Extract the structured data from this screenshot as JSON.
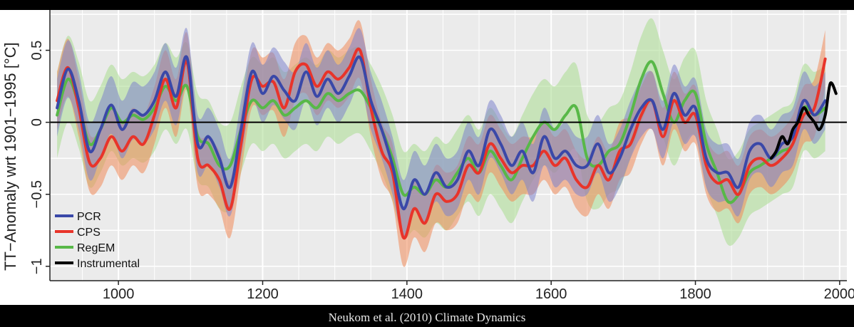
{
  "caption": "Neukom et al. (2010) Climate Dynamics",
  "chart_data": {
    "type": "line",
    "title": "",
    "xlabel": "",
    "ylabel": "TT−Anomaly wrt 1901−1995 [°C]",
    "xlim": [
      905,
      2010
    ],
    "ylim": [
      -1.1,
      0.78
    ],
    "x_ticks": [
      1000,
      1200,
      1400,
      1600,
      1800,
      2000
    ],
    "y_ticks": [
      -1,
      -0.5,
      0,
      0.5
    ],
    "y_tick_labels": [
      "−1",
      "−0.5",
      "0",
      "0.5"
    ],
    "grid": true,
    "legend_position": "bottom-left",
    "legend": [
      "PCR",
      "CPS",
      "RegEM",
      "Instrumental"
    ],
    "colors": {
      "PCR": "#3a48a8",
      "CPS": "#e8342a",
      "RegEM": "#58b848",
      "Instrumental": "#000000"
    },
    "band_colors": {
      "PCR": "#7d84cc",
      "CPS": "#f08a5a",
      "RegEM": "#a9dd90"
    },
    "band_halfwidth": {
      "PCR": 0.2,
      "CPS": 0.2,
      "RegEM": 0.3
    },
    "series": [
      {
        "name": "PCR",
        "x": [
          915,
          930,
          945,
          960,
          975,
          990,
          1005,
          1020,
          1035,
          1050,
          1065,
          1080,
          1095,
          1110,
          1125,
          1140,
          1155,
          1170,
          1185,
          1200,
          1215,
          1230,
          1245,
          1260,
          1275,
          1290,
          1305,
          1320,
          1335,
          1350,
          1365,
          1380,
          1395,
          1410,
          1425,
          1440,
          1455,
          1470,
          1485,
          1500,
          1515,
          1530,
          1545,
          1560,
          1575,
          1590,
          1605,
          1620,
          1635,
          1650,
          1665,
          1680,
          1695,
          1710,
          1725,
          1740,
          1755,
          1770,
          1785,
          1800,
          1815,
          1830,
          1845,
          1860,
          1875,
          1890,
          1905,
          1920,
          1935,
          1950,
          1965,
          1980
        ],
        "y": [
          0.1,
          0.37,
          0.15,
          -0.2,
          -0.05,
          0.12,
          -0.05,
          0.08,
          0.05,
          0.15,
          0.35,
          0.18,
          0.45,
          -0.15,
          -0.1,
          -0.25,
          -0.45,
          -0.05,
          0.35,
          0.2,
          0.32,
          0.22,
          0.15,
          0.35,
          0.18,
          0.3,
          0.2,
          0.32,
          0.45,
          0.15,
          -0.05,
          -0.3,
          -0.6,
          -0.4,
          -0.5,
          -0.35,
          -0.45,
          -0.4,
          -0.2,
          -0.3,
          -0.05,
          -0.15,
          -0.3,
          -0.2,
          -0.35,
          -0.1,
          -0.25,
          -0.2,
          -0.3,
          -0.3,
          -0.15,
          -0.35,
          -0.25,
          -0.05,
          0.1,
          0.15,
          -0.05,
          0.2,
          0.05,
          0.1,
          -0.25,
          -0.35,
          -0.35,
          -0.45,
          -0.2,
          -0.15,
          -0.25,
          -0.15,
          -0.1,
          0.15,
          0.05,
          0.15
        ]
      },
      {
        "name": "CPS",
        "x": [
          915,
          930,
          945,
          960,
          975,
          990,
          1005,
          1020,
          1035,
          1050,
          1065,
          1080,
          1095,
          1110,
          1125,
          1140,
          1155,
          1170,
          1185,
          1200,
          1215,
          1230,
          1245,
          1260,
          1275,
          1290,
          1305,
          1320,
          1335,
          1350,
          1365,
          1380,
          1395,
          1410,
          1425,
          1440,
          1455,
          1470,
          1485,
          1500,
          1515,
          1530,
          1545,
          1560,
          1575,
          1590,
          1605,
          1620,
          1635,
          1650,
          1665,
          1680,
          1695,
          1710,
          1725,
          1740,
          1755,
          1770,
          1785,
          1800,
          1815,
          1830,
          1845,
          1860,
          1875,
          1890,
          1905,
          1920,
          1935,
          1950,
          1965,
          1980
        ],
        "y": [
          0.15,
          0.38,
          0.1,
          -0.28,
          -0.25,
          -0.1,
          -0.2,
          -0.1,
          -0.15,
          0.05,
          0.3,
          0.1,
          0.42,
          -0.25,
          -0.3,
          -0.4,
          -0.6,
          -0.15,
          0.3,
          0.25,
          0.28,
          0.1,
          0.35,
          0.4,
          0.25,
          0.35,
          0.3,
          0.38,
          0.5,
          0.1,
          -0.2,
          -0.35,
          -0.8,
          -0.6,
          -0.7,
          -0.5,
          -0.55,
          -0.5,
          -0.3,
          -0.35,
          -0.15,
          -0.25,
          -0.35,
          -0.3,
          -0.3,
          -0.2,
          -0.3,
          -0.25,
          -0.4,
          -0.45,
          -0.3,
          -0.4,
          -0.2,
          -0.15,
          0.05,
          0.15,
          -0.1,
          0.15,
          0.0,
          0.05,
          -0.3,
          -0.42,
          -0.4,
          -0.5,
          -0.3,
          -0.25,
          -0.3,
          -0.25,
          -0.15,
          0.05,
          0.1,
          0.44
        ]
      },
      {
        "name": "RegEM",
        "x": [
          915,
          930,
          945,
          960,
          975,
          990,
          1005,
          1020,
          1035,
          1050,
          1065,
          1080,
          1095,
          1110,
          1125,
          1140,
          1155,
          1170,
          1185,
          1200,
          1215,
          1230,
          1245,
          1260,
          1275,
          1290,
          1305,
          1320,
          1335,
          1350,
          1365,
          1380,
          1395,
          1410,
          1425,
          1440,
          1455,
          1470,
          1485,
          1500,
          1515,
          1530,
          1545,
          1560,
          1575,
          1590,
          1605,
          1620,
          1635,
          1650,
          1665,
          1680,
          1695,
          1710,
          1725,
          1740,
          1755,
          1770,
          1785,
          1800,
          1815,
          1830,
          1845,
          1860,
          1875,
          1890,
          1905,
          1920,
          1935,
          1950,
          1965,
          1980
        ],
        "y": [
          0.05,
          0.3,
          0.12,
          -0.15,
          -0.05,
          0.1,
          0.0,
          0.05,
          0.02,
          0.1,
          0.25,
          0.15,
          0.25,
          -0.1,
          -0.15,
          -0.3,
          -0.3,
          -0.05,
          0.15,
          0.1,
          0.15,
          0.05,
          0.1,
          0.15,
          0.1,
          0.2,
          0.15,
          0.2,
          0.22,
          0.1,
          -0.05,
          -0.25,
          -0.5,
          -0.45,
          -0.5,
          -0.4,
          -0.45,
          -0.35,
          -0.25,
          -0.35,
          -0.2,
          -0.3,
          -0.4,
          -0.25,
          -0.1,
          0.0,
          -0.05,
          0.05,
          0.1,
          -0.25,
          -0.3,
          -0.2,
          -0.15,
          0.05,
          0.3,
          0.42,
          0.2,
          0.0,
          0.15,
          0.2,
          -0.15,
          -0.35,
          -0.55,
          -0.5,
          -0.35,
          -0.3,
          -0.25,
          -0.2,
          -0.15,
          0.1,
          0.05,
          0.1
        ]
      },
      {
        "name": "Instrumental",
        "x": [
          1905,
          1912,
          1920,
          1928,
          1935,
          1942,
          1950,
          1957,
          1965,
          1972,
          1980,
          1987,
          1995
        ],
        "y": [
          -0.25,
          -0.2,
          -0.1,
          -0.15,
          -0.05,
          0.0,
          0.1,
          0.05,
          0.0,
          -0.05,
          0.05,
          0.27,
          0.2
        ]
      }
    ]
  }
}
